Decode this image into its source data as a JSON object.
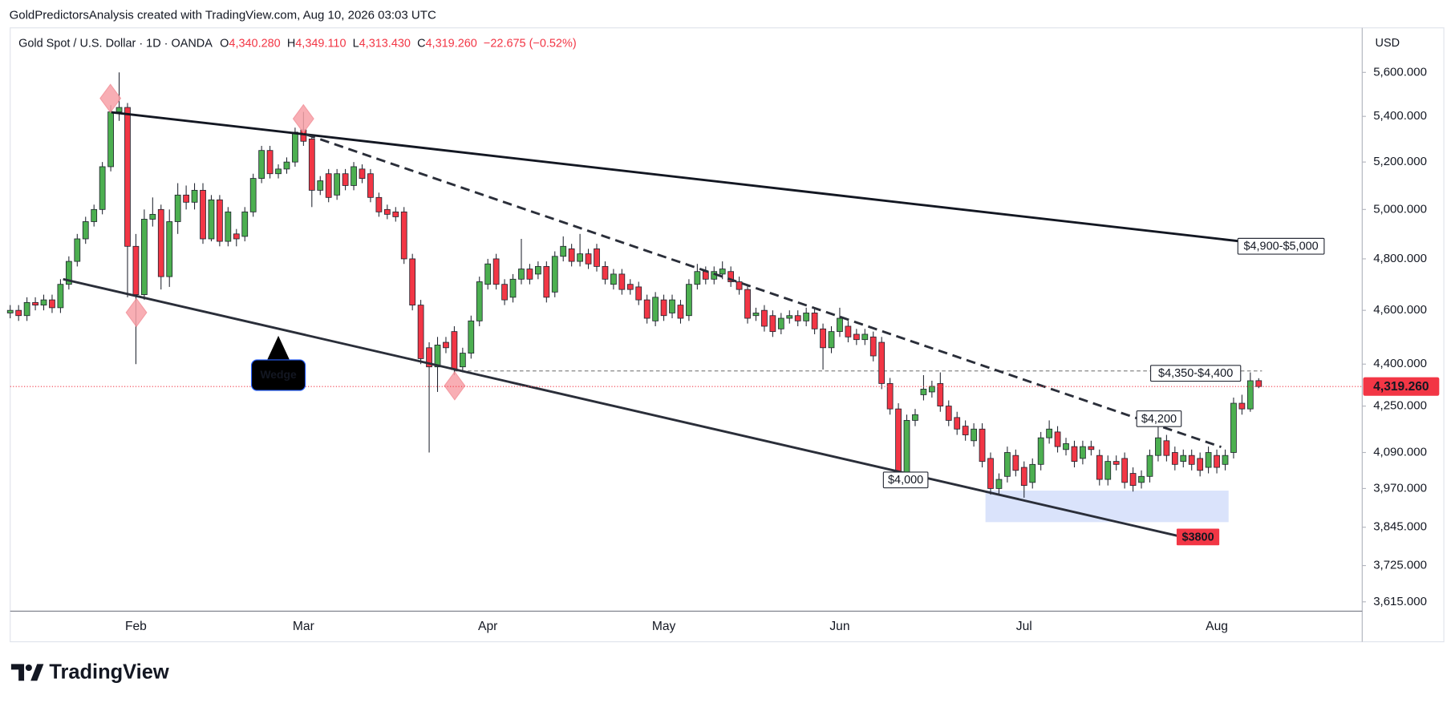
{
  "header": {
    "credit": "GoldPredictorsAnalysis created with TradingView.com, Aug 10, 2026 03:03 UTC"
  },
  "footer": {
    "brand": "TradingView"
  },
  "chart_data": {
    "type": "candlestick",
    "symbol": "Gold Spot / U.S. Dollar · 1D · OANDA",
    "ohlc_legend": [
      {
        "key": "O",
        "value": "4,340.280"
      },
      {
        "key": "H",
        "value": "4,349.110"
      },
      {
        "key": "L",
        "value": "4,313.430"
      },
      {
        "key": "C",
        "value": "4,319.260"
      }
    ],
    "change": "−22.675 (−0.52%)",
    "currency": "USD",
    "log_scale": true,
    "up_color": "#4caf50",
    "down_color": "#f23645",
    "ylim": [
      3590,
      5810
    ],
    "yticks": [
      {
        "value": 5600,
        "label": "5,600.000"
      },
      {
        "value": 5400,
        "label": "5,400.000"
      },
      {
        "value": 5200,
        "label": "5,200.000"
      },
      {
        "value": 5000,
        "label": "5,000.000"
      },
      {
        "value": 4800,
        "label": "4,800.000"
      },
      {
        "value": 4600,
        "label": "4,600.000"
      },
      {
        "value": 4400,
        "label": "4,400.000"
      },
      {
        "value": 4250,
        "label": "4,250.000"
      },
      {
        "value": 4090,
        "label": "4,090.000"
      },
      {
        "value": 3970,
        "label": "3,970.000"
      },
      {
        "value": 3845,
        "label": "3,845.000"
      },
      {
        "value": 3725,
        "label": "3,725.000"
      },
      {
        "value": 3615,
        "label": "3,615.000"
      }
    ],
    "last_price": {
      "value": 4319.26,
      "label": "4,319.260"
    },
    "annotations": [
      "$4,900-$5,000",
      "$4,350-$4,400",
      "$4,200",
      "$4,000",
      "$3800",
      "Wedge"
    ],
    "categories": [
      null,
      null,
      null,
      null,
      null,
      null,
      null,
      null,
      null,
      null,
      null,
      null,
      null,
      null,
      null,
      "Feb",
      null,
      null,
      null,
      null,
      null,
      null,
      null,
      null,
      null,
      null,
      null,
      null,
      null,
      null,
      null,
      null,
      null,
      null,
      null,
      "Mar",
      null,
      null,
      null,
      null,
      null,
      null,
      null,
      null,
      null,
      null,
      null,
      null,
      null,
      null,
      null,
      null,
      null,
      null,
      null,
      null,
      null,
      "Apr",
      null,
      null,
      null,
      null,
      null,
      null,
      null,
      null,
      null,
      null,
      null,
      null,
      null,
      null,
      null,
      null,
      null,
      null,
      null,
      null,
      "May",
      null,
      null,
      null,
      null,
      null,
      null,
      null,
      null,
      null,
      null,
      null,
      null,
      null,
      null,
      null,
      null,
      null,
      null,
      null,
      null,
      "Jun",
      null,
      null,
      null,
      null,
      null,
      null,
      null,
      null,
      null,
      null,
      null,
      null,
      null,
      null,
      null,
      null,
      null,
      null,
      null,
      null,
      null,
      "Jul",
      null,
      null,
      null,
      null,
      null,
      null,
      null,
      null,
      null,
      null,
      null,
      null,
      null,
      null,
      null,
      null,
      null,
      null,
      null,
      null,
      null,
      null,
      "Aug",
      null,
      null,
      null,
      null,
      null
    ],
    "open": [
      4590,
      4600,
      4580,
      4630,
      4620,
      4640,
      4610,
      4700,
      4790,
      4880,
      4950,
      5000,
      5180,
      5420,
      5440,
      4850,
      4660,
      4960,
      5000,
      4730,
      4950,
      5060,
      5030,
      5080,
      4880,
      5040,
      4870,
      4900,
      4890,
      4990,
      5130,
      5250,
      5150,
      5170,
      5200,
      5340,
      5300,
      5080,
      5150,
      5060,
      5150,
      5100,
      5170,
      5150,
      5050,
      5000,
      4990,
      4990,
      4800,
      4620,
      4460,
      4390,
      4480,
      4520,
      4390,
      4440,
      4560,
      4700,
      4800,
      4700,
      4650,
      4720,
      4760,
      4740,
      4770,
      4670,
      4810,
      4840,
      4790,
      4820,
      4840,
      4770,
      4700,
      4740,
      4700,
      4690,
      4640,
      4560,
      4640,
      4590,
      4620,
      4580,
      4700,
      4750,
      4720,
      4740,
      4750,
      4710,
      4680,
      4580,
      4600,
      4580,
      4530,
      4570,
      4580,
      4560,
      4590,
      4530,
      4460,
      4520,
      4540,
      4510,
      4490,
      4500,
      4480,
      4330,
      4240,
      4020,
      4200,
      4290,
      4300,
      4330,
      4250,
      4210,
      4180,
      4130,
      4170,
      4070,
      3970,
      4010,
      4080,
      4040,
      3990,
      4050,
      4140,
      4160,
      4100,
      4110,
      4070,
      4110,
      4080,
      4000,
      4060,
      4070,
      4020,
      3990,
      4010,
      4080,
      4130,
      4090,
      4060,
      4080,
      4070,
      4040,
      4080,
      4050,
      4090,
      4260,
      4240,
      4340.28
    ],
    "high": [
      4620,
      4620,
      4650,
      4650,
      4660,
      4660,
      4720,
      4810,
      4900,
      4970,
      5020,
      5200,
      5450,
      5600,
      5460,
      4900,
      5000,
      5050,
      5020,
      5000,
      5110,
      5100,
      5110,
      5110,
      5060,
      5060,
      5010,
      4920,
      5010,
      5150,
      5270,
      5270,
      5190,
      5220,
      5350,
      5420,
      5320,
      5140,
      5170,
      5170,
      5170,
      5200,
      5190,
      5170,
      5070,
      5020,
      5010,
      5010,
      4820,
      4640,
      4480,
      4500,
      4500,
      4540,
      4460,
      4580,
      4730,
      4800,
      4820,
      4720,
      4740,
      4880,
      4780,
      4790,
      4790,
      4830,
      4890,
      4860,
      4900,
      4840,
      4860,
      4790,
      4760,
      4760,
      4720,
      4710,
      4660,
      4670,
      4660,
      4660,
      4640,
      4720,
      4780,
      4770,
      4770,
      4790,
      4770,
      4730,
      4700,
      4610,
      4620,
      4600,
      4590,
      4600,
      4600,
      4610,
      4610,
      4550,
      4540,
      4610,
      4560,
      4530,
      4530,
      4520,
      4500,
      4350,
      4260,
      4220,
      4240,
      4360,
      4340,
      4370,
      4270,
      4230,
      4200,
      4190,
      4190,
      4090,
      4020,
      4110,
      4100,
      4060,
      4070,
      4160,
      4200,
      4180,
      4140,
      4130,
      4130,
      4130,
      4100,
      4080,
      4080,
      4090,
      4040,
      4030,
      4100,
      4180,
      4150,
      4110,
      4100,
      4100,
      4090,
      4110,
      4100,
      4100,
      4280,
      4290,
      4370,
      4349.11
    ],
    "low": [
      4570,
      4560,
      4560,
      4600,
      4600,
      4590,
      4590,
      4680,
      4770,
      4860,
      4930,
      4980,
      5160,
      5380,
      4650,
      4400,
      4640,
      4930,
      4680,
      4690,
      4900,
      5000,
      5000,
      4860,
      4870,
      4850,
      4850,
      4850,
      4870,
      4970,
      5110,
      5130,
      5130,
      5150,
      5180,
      5270,
      5010,
      5060,
      5030,
      5040,
      5080,
      5080,
      5110,
      5030,
      4970,
      4960,
      4950,
      4780,
      4600,
      4400,
      4090,
      4300,
      4440,
      4360,
      4370,
      4420,
      4540,
      4680,
      4680,
      4620,
      4630,
      4700,
      4700,
      4720,
      4630,
      4650,
      4790,
      4770,
      4770,
      4760,
      4750,
      4700,
      4680,
      4660,
      4660,
      4620,
      4550,
      4540,
      4560,
      4570,
      4550,
      4560,
      4680,
      4700,
      4700,
      4720,
      4690,
      4660,
      4550,
      4560,
      4520,
      4500,
      4510,
      4550,
      4540,
      4540,
      4510,
      4380,
      4440,
      4500,
      4480,
      4470,
      4470,
      4410,
      4310,
      4220,
      4000,
      4000,
      4180,
      4270,
      4280,
      4230,
      4180,
      4150,
      4130,
      4110,
      4040,
      3950,
      3950,
      3990,
      4010,
      3940,
      3970,
      4030,
      4120,
      4090,
      4080,
      4040,
      4050,
      4080,
      3980,
      3980,
      4030,
      3970,
      3960,
      3970,
      3990,
      4060,
      4060,
      4030,
      4040,
      4030,
      4010,
      4020,
      4020,
      4030,
      4070,
      4220,
      4230,
      4313.43
    ],
    "close": [
      4600,
      4580,
      4630,
      4620,
      4640,
      4610,
      4700,
      4790,
      4880,
      4950,
      5000,
      5180,
      5420,
      5440,
      4850,
      4660,
      4960,
      4980,
      4730,
      4950,
      5060,
      5030,
      5080,
      4880,
      5040,
      4870,
      4990,
      4880,
      4990,
      5130,
      5250,
      5150,
      5170,
      5200,
      5330,
      5290,
      5080,
      5120,
      5050,
      5150,
      5100,
      5180,
      5130,
      5050,
      4990,
      4980,
      4970,
      4800,
      4620,
      4420,
      4390,
      4470,
      4460,
      4380,
      4440,
      4560,
      4710,
      4780,
      4700,
      4640,
      4720,
      4760,
      4720,
      4770,
      4650,
      4810,
      4850,
      4790,
      4820,
      4780,
      4770,
      4720,
      4740,
      4680,
      4680,
      4640,
      4570,
      4650,
      4580,
      4640,
      4570,
      4700,
      4750,
      4720,
      4750,
      4760,
      4710,
      4680,
      4570,
      4590,
      4540,
      4520,
      4570,
      4580,
      4560,
      4590,
      4530,
      4460,
      4520,
      4570,
      4500,
      4490,
      4510,
      4430,
      4330,
      4240,
      4020,
      4200,
      4220,
      4310,
      4320,
      4250,
      4200,
      4170,
      4150,
      4170,
      4060,
      3970,
      4000,
      4090,
      4030,
      3980,
      4050,
      4140,
      4170,
      4110,
      4120,
      4060,
      4110,
      4100,
      4000,
      4060,
      4050,
      3990,
      3980,
      4010,
      4080,
      4140,
      4080,
      4050,
      4080,
      4050,
      4030,
      4090,
      4040,
      4080,
      4260,
      4240,
      4340,
      4319.26
    ]
  }
}
